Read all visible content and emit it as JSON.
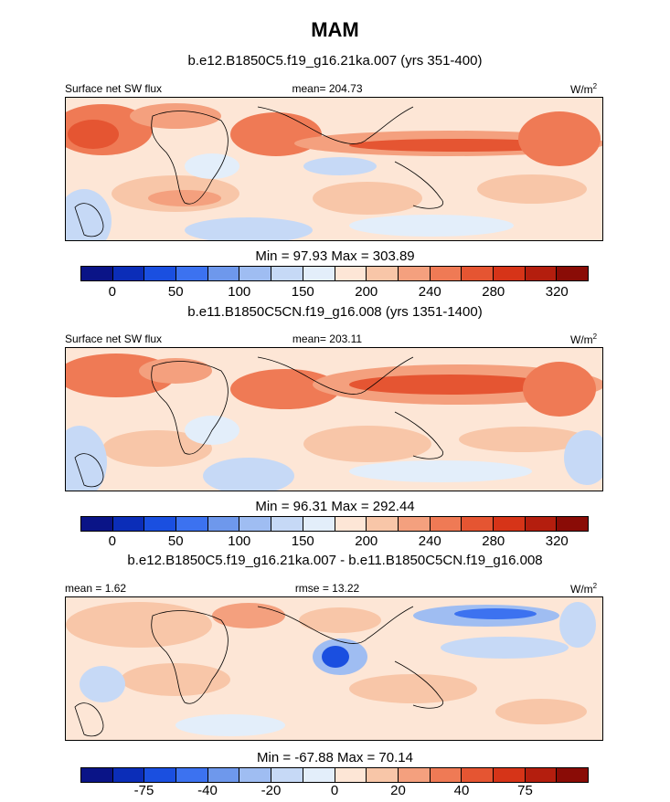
{
  "figure": {
    "title": "MAM",
    "units_label": "W/m",
    "units_sup": "2"
  },
  "panels": [
    {
      "subtitle": "b.e12.B1850C5.f19_g16.21ka.007 (yrs 351-400)",
      "left_label": "Surface net SW flux",
      "center_label": "mean= 204.73",
      "minmax": "Min =  97.93 Max = 303.89",
      "colorbar_ticks": [
        "0",
        "50",
        "100",
        "150",
        "200",
        "240",
        "280",
        "320"
      ],
      "palette": "diverging"
    },
    {
      "subtitle": "b.e11.B1850C5CN.f19_g16.008 (yrs 1351-1400)",
      "left_label": "Surface net SW flux",
      "center_label": "mean= 203.11",
      "minmax": "Min =  96.31 Max = 292.44",
      "colorbar_ticks": [
        "0",
        "50",
        "100",
        "150",
        "200",
        "240",
        "280",
        "320"
      ],
      "palette": "diverging"
    },
    {
      "subtitle": "b.e12.B1850C5.f19_g16.21ka.007 - b.e11.B1850C5CN.f19_g16.008",
      "left_label": "mean =   1.62",
      "center_label": "rmse =   13.22",
      "minmax": "Min = -67.88 Max =  70.14",
      "colorbar_ticks": [
        "-75",
        "-40",
        "-20",
        "0",
        "20",
        "40",
        "75"
      ],
      "palette": "diverging"
    }
  ],
  "colors": {
    "colorbar": [
      "#0a1487",
      "#0b2db8",
      "#1a4fe0",
      "#3c72f0",
      "#6e98ec",
      "#9fbdf2",
      "#c6d9f6",
      "#e3eefa",
      "#fde6d6",
      "#f8c6a8",
      "#f4a07e",
      "#ef7a55",
      "#e55532",
      "#d63418",
      "#b41e0e",
      "#8a0c06"
    ]
  }
}
